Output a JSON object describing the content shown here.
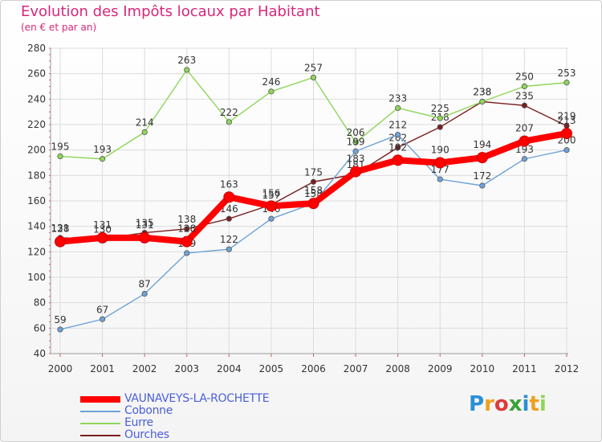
{
  "header": {
    "title": "Evolution des Impôts locaux par Habitant",
    "subtitle": "(en € et par an)"
  },
  "brand": {
    "name": "Proxiti"
  },
  "chart_data": {
    "type": "line",
    "title": "Evolution des Impôts locaux par Habitant",
    "subtitle": "(en € et par an)",
    "xlabel": "",
    "ylabel": "",
    "ylim": [
      40,
      280
    ],
    "yticks": [
      "40",
      "60",
      "80",
      "100",
      "120",
      "140",
      "160",
      "180",
      "200",
      "220",
      "240",
      "260",
      "280"
    ],
    "categories": [
      "2000",
      "2001",
      "2002",
      "2003",
      "2004",
      "2005",
      "2006",
      "2007",
      "2008",
      "2009",
      "2010",
      "2011",
      "2012"
    ],
    "grid": true,
    "legend": "bottom-left",
    "series": [
      {
        "name": "Ourches",
        "color": "#7a1f1f",
        "values": [
          131,
          130,
          135,
          138,
          146,
          157,
          175,
          181,
          202,
          218,
          238,
          235,
          219
        ],
        "labels": [
          "131",
          "130",
          "135",
          "138",
          "146",
          "157",
          "175",
          "181",
          "202",
          "218",
          "238",
          "235",
          "219"
        ]
      },
      {
        "name": "Eurre",
        "color": "#8fd65a",
        "values": [
          195,
          193,
          214,
          263,
          222,
          246,
          257,
          206,
          233,
          225,
          238,
          250,
          253
        ],
        "labels": [
          "195",
          "193",
          "214",
          "263",
          "222",
          "246",
          "257",
          "206",
          "233",
          "225",
          "238",
          "250",
          "253"
        ]
      },
      {
        "name": "Cobonne",
        "color": "#6fa3d6",
        "values": [
          59,
          67,
          87,
          119,
          122,
          146,
          158,
          199,
          212,
          177,
          172,
          193,
          200
        ],
        "labels": [
          "59",
          "67",
          "87",
          "119",
          "122",
          "146",
          "158",
          "199",
          "212",
          "177",
          "172",
          "193",
          "200"
        ]
      },
      {
        "name": "VAUNAVEYS-LA-ROCHETTE",
        "color": "#ff0000",
        "values": [
          128,
          131,
          131,
          128,
          163,
          156,
          158,
          183,
          192,
          190,
          194,
          207,
          213
        ],
        "labels": [
          "128",
          "131",
          "131",
          "128",
          "163",
          "156",
          "158",
          "183",
          "192",
          "190",
          "194",
          "207",
          "213"
        ]
      }
    ]
  }
}
